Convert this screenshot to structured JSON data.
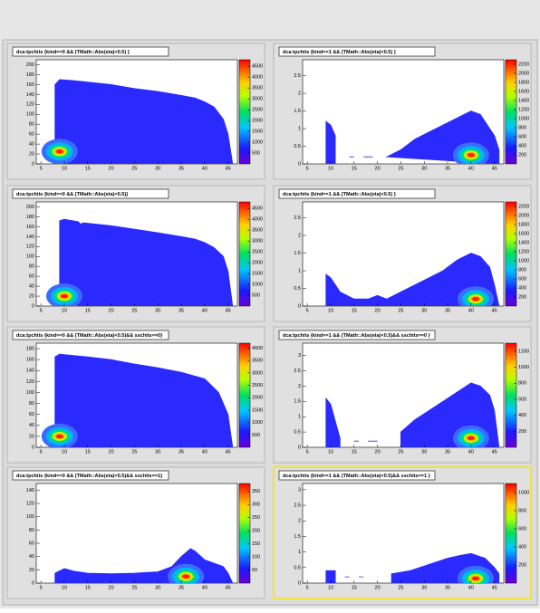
{
  "chart_data": [
    {
      "type": "contour",
      "title": "dca:tpchits {kind==0 && (TMath::Abs(eta)<0.5) }",
      "xlim": [
        4,
        47
      ],
      "xticks": [
        5,
        10,
        15,
        20,
        25,
        30,
        35,
        40,
        45
      ],
      "ylim": [
        0,
        210
      ],
      "yticks": [
        0,
        20,
        40,
        60,
        80,
        100,
        120,
        140,
        160,
        180,
        200
      ],
      "zlim": [
        0,
        4800
      ],
      "zticks": [
        500,
        1000,
        1500,
        2000,
        2500,
        3000,
        3500,
        4000,
        4500
      ],
      "outline": {
        "x": [
          8,
          8,
          9,
          12,
          15,
          20,
          25,
          30,
          35,
          38,
          40,
          42,
          44,
          45,
          46
        ],
        "y": [
          0,
          160,
          170,
          168,
          165,
          160,
          152,
          146,
          138,
          133,
          125,
          115,
          90,
          60,
          0
        ]
      },
      "peak": {
        "x": 9,
        "y": 25
      }
    },
    {
      "type": "contour",
      "title": "dca:tpchits {kind==1  && (TMath::Abs(eta)<0.5) }",
      "xlim": [
        4,
        47
      ],
      "xticks": [
        5,
        10,
        15,
        20,
        25,
        30,
        35,
        40,
        45
      ],
      "ylim": [
        0,
        2.95
      ],
      "yticks": [
        0,
        0.5,
        1,
        1.5,
        2,
        2.5
      ],
      "zlim": [
        0,
        2300
      ],
      "zticks": [
        200,
        400,
        600,
        800,
        1000,
        1200,
        1400,
        1600,
        1800,
        2000,
        2200
      ],
      "outline": {
        "x": [
          9,
          9,
          10,
          11,
          11,
          null,
          14,
          15,
          null,
          17,
          19,
          null,
          22,
          25,
          28,
          31,
          34,
          37,
          40,
          42,
          44,
          45,
          46,
          46
        ],
        "y": [
          0,
          1.2,
          1.1,
          0.8,
          0,
          null,
          0.2,
          0.2,
          null,
          0.2,
          0.2,
          null,
          0.2,
          0.4,
          0.7,
          0.9,
          1.1,
          1.3,
          1.5,
          1.4,
          1,
          0.8,
          0.4,
          0
        ]
      },
      "peak": {
        "x": 40,
        "y": 0.25
      }
    },
    {
      "type": "contour",
      "title": "dca:tpchits {kind==0  && (TMath::Abs(eta)<0.5)}",
      "xlim": [
        4,
        47
      ],
      "xticks": [
        5,
        10,
        15,
        20,
        25,
        30,
        35,
        40,
        45
      ],
      "ylim": [
        0,
        210
      ],
      "yticks": [
        0,
        20,
        40,
        60,
        80,
        100,
        120,
        140,
        160,
        180,
        200
      ],
      "zlim": [
        0,
        4800
      ],
      "zticks": [
        500,
        1000,
        1500,
        2000,
        2500,
        3000,
        3500,
        4000,
        4500
      ],
      "outline": {
        "x": [
          9,
          9,
          10,
          13,
          13.5,
          14,
          20,
          25,
          30,
          35,
          38,
          40,
          42,
          44,
          45,
          46
        ],
        "y": [
          0,
          172,
          175,
          170,
          165,
          168,
          162,
          155,
          148,
          140,
          135,
          128,
          118,
          100,
          70,
          0
        ]
      },
      "peak": {
        "x": 10,
        "y": 20
      }
    },
    {
      "type": "contour",
      "title": "dca:tpchits {kind==1  && (TMath::Abs(eta)<0.5) }",
      "xlim": [
        4,
        47
      ],
      "xticks": [
        5,
        10,
        15,
        20,
        25,
        30,
        35,
        40,
        45
      ],
      "ylim": [
        0,
        2.95
      ],
      "yticks": [
        0,
        0.5,
        1,
        1.5,
        2,
        2.5
      ],
      "zlim": [
        0,
        2300
      ],
      "zticks": [
        200,
        400,
        600,
        800,
        1000,
        1200,
        1400,
        1600,
        1800,
        2000,
        2200
      ],
      "outline": {
        "x": [
          9,
          9,
          10,
          12,
          15,
          18,
          20,
          22,
          25,
          28,
          31,
          34,
          37,
          40,
          42,
          44,
          45,
          46
        ],
        "y": [
          0,
          0.9,
          0.8,
          0.4,
          0.2,
          0.2,
          0.3,
          0.2,
          0.4,
          0.6,
          0.8,
          1,
          1.3,
          1.5,
          1.4,
          1.1,
          0.6,
          0
        ]
      },
      "peak": {
        "x": 41,
        "y": 0.2
      }
    },
    {
      "type": "contour",
      "title": "dca:tpchits {kind==0  && (TMath::Abs(eta)<0.5)&& sschits==0}",
      "xlim": [
        4,
        47
      ],
      "xticks": [
        5,
        10,
        15,
        20,
        25,
        30,
        35,
        40,
        45
      ],
      "ylim": [
        0,
        190
      ],
      "yticks": [
        0,
        20,
        40,
        60,
        80,
        100,
        120,
        140,
        160,
        180
      ],
      "zlim": [
        0,
        4200
      ],
      "zticks": [
        500,
        1000,
        1500,
        2000,
        2500,
        3000,
        3500,
        4000
      ],
      "outline": {
        "x": [
          8,
          8,
          9,
          15,
          20,
          25,
          30,
          35,
          40,
          43,
          45,
          46
        ],
        "y": [
          0,
          165,
          170,
          165,
          160,
          152,
          145,
          137,
          125,
          100,
          60,
          0
        ]
      },
      "peak": {
        "x": 9,
        "y": 20
      }
    },
    {
      "type": "contour",
      "title": "dca:tpchits {kind==1  && (TMath::Abs(eta)<0.5)&& sschits==0 }",
      "xlim": [
        4,
        47
      ],
      "xticks": [
        5,
        10,
        15,
        20,
        25,
        30,
        35,
        40,
        45
      ],
      "ylim": [
        0,
        3.4
      ],
      "yticks": [
        0,
        0.5,
        1,
        1.5,
        2,
        2.5,
        3
      ],
      "zlim": [
        0,
        1300
      ],
      "zticks": [
        200,
        400,
        600,
        800,
        1000,
        1200
      ],
      "outline": {
        "x": [
          9,
          9,
          10,
          12,
          12,
          null,
          15,
          16,
          null,
          18,
          20,
          null,
          25,
          25,
          28,
          31,
          34,
          37,
          40,
          42,
          44,
          45,
          46
        ],
        "y": [
          0,
          1.6,
          1.4,
          0.3,
          0,
          null,
          0.2,
          0.2,
          null,
          0.2,
          0.2,
          null,
          0,
          0.5,
          0.9,
          1.2,
          1.5,
          1.8,
          2.1,
          2,
          1.7,
          1.2,
          0
        ]
      },
      "peak": {
        "x": 40,
        "y": 0.3
      }
    },
    {
      "type": "contour",
      "title": "dca:tpchits {kind==0  && (TMath::Abs(eta)<0.5)&& sschits==1}",
      "xlim": [
        4,
        47
      ],
      "xticks": [
        5,
        10,
        15,
        20,
        25,
        30,
        35,
        40,
        45
      ],
      "ylim": [
        0,
        150
      ],
      "yticks": [
        0,
        20,
        40,
        60,
        80,
        100,
        120,
        140
      ],
      "zlim": [
        0,
        380
      ],
      "zticks": [
        50,
        100,
        150,
        200,
        250,
        300,
        350
      ],
      "outline": {
        "x": [
          8,
          8,
          10,
          12,
          15,
          20,
          25,
          30,
          33,
          35,
          37,
          38,
          40,
          42,
          44,
          45,
          46
        ],
        "y": [
          0,
          15,
          22,
          18,
          15,
          14,
          15,
          17,
          25,
          40,
          52,
          48,
          35,
          30,
          25,
          15,
          0
        ]
      },
      "peak": {
        "x": 36,
        "y": 10
      }
    },
    {
      "type": "contour",
      "title": "dca:tpchits {kind==1  && (TMath::Abs(eta)<0.5)&& sschits==1 }",
      "selected": true,
      "xlim": [
        4,
        47
      ],
      "xticks": [
        5,
        10,
        15,
        20,
        25,
        30,
        35,
        40,
        45
      ],
      "ylim": [
        0,
        3.2
      ],
      "yticks": [
        0,
        0.5,
        1,
        1.5,
        2,
        2.5,
        3
      ],
      "zlim": [
        0,
        1100
      ],
      "zticks": [
        200,
        400,
        600,
        800,
        1000
      ],
      "outline": {
        "x": [
          9,
          9,
          11,
          11,
          null,
          13,
          14,
          null,
          16,
          17,
          null,
          23,
          23,
          27,
          31,
          35,
          38,
          40,
          43,
          45,
          46,
          46
        ],
        "y": [
          0,
          0.4,
          0.4,
          0,
          null,
          0.2,
          0.2,
          null,
          0.2,
          0.2,
          null,
          0,
          0.3,
          0.4,
          0.6,
          0.8,
          0.9,
          0.95,
          0.8,
          0.5,
          0.3,
          0
        ]
      },
      "peak": {
        "x": 41,
        "y": 0.15
      }
    }
  ]
}
